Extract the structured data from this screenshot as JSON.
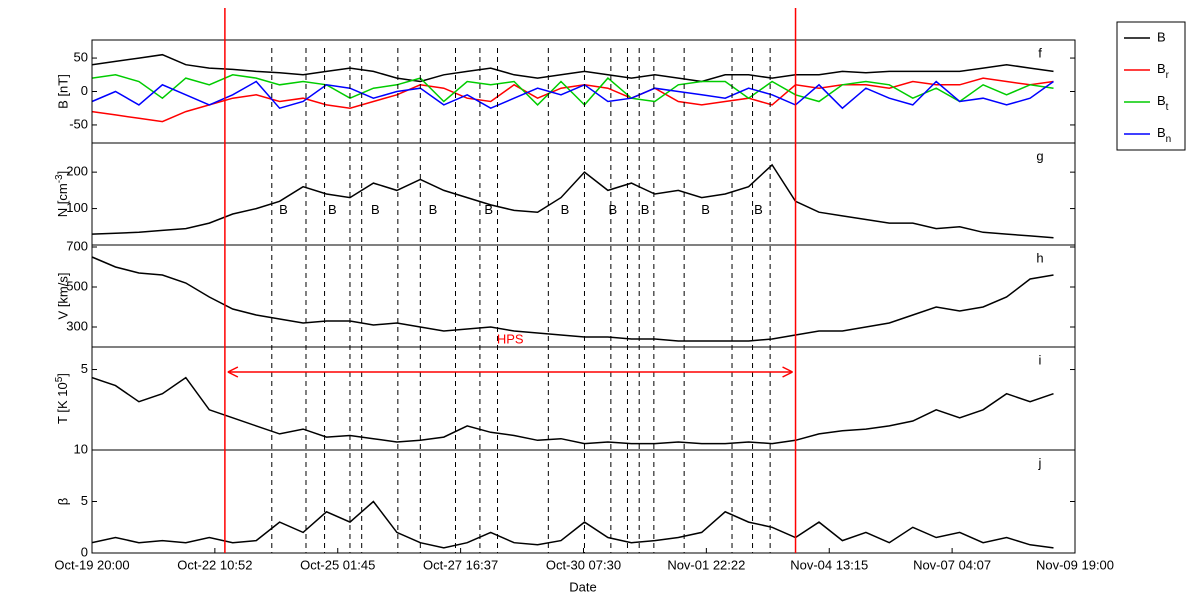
{
  "chart_data": {
    "type": "line",
    "xlabel": "Date",
    "x": [
      "Oct-19 20:00",
      "Oct-20 08:00",
      "Oct-20 20:00",
      "Oct-21 08:00",
      "Oct-21 20:00",
      "Oct-22 08:00",
      "Oct-22 20:00",
      "Oct-23 08:00",
      "Oct-23 20:00",
      "Oct-24 08:00",
      "Oct-24 20:00",
      "Oct-25 08:00",
      "Oct-25 20:00",
      "Oct-26 08:00",
      "Oct-26 20:00",
      "Oct-27 08:00",
      "Oct-27 20:00",
      "Oct-28 08:00",
      "Oct-28 20:00",
      "Oct-29 08:00",
      "Oct-29 20:00",
      "Oct-30 08:00",
      "Oct-30 20:00",
      "Oct-31 08:00",
      "Oct-31 20:00",
      "Nov-01 08:00",
      "Nov-01 20:00",
      "Nov-02 08:00",
      "Nov-02 20:00",
      "Nov-03 08:00",
      "Nov-03 20:00",
      "Nov-04 08:00",
      "Nov-04 20:00",
      "Nov-05 08:00",
      "Nov-05 20:00",
      "Nov-06 08:00",
      "Nov-06 20:00",
      "Nov-07 08:00",
      "Nov-07 20:00",
      "Nov-08 08:00",
      "Nov-08 20:00",
      "Nov-09 08:00"
    ],
    "xlim": [
      "Oct-19 20:00",
      "Nov-09 19:00"
    ],
    "xticks": [
      "Oct-19 20:00",
      "Oct-22 10:52",
      "Oct-25 01:45",
      "Oct-27 16:37",
      "Oct-30 07:30",
      "Nov-01 22:22",
      "Nov-04 13:15",
      "Nov-07 04:07",
      "Nov-09 19:00"
    ],
    "boundaries": [
      "Oct-22 16:00",
      "Nov-03 20:00"
    ],
    "boundary_color": "#ff0000",
    "span_label": "HPS",
    "events": [
      "Oct-23 16:00",
      "Oct-24 09:30",
      "Oct-24 19:00",
      "Oct-25 08:00",
      "Oct-25 14:00",
      "Oct-26 08:30",
      "Oct-26 20:00",
      "Oct-27 14:00",
      "Oct-28 02:30",
      "Oct-28 11:30",
      "Oct-29 13:30",
      "Oct-30 08:00",
      "Oct-30 21:30",
      "Oct-31 06:00",
      "Oct-31 12:00",
      "Oct-31 19:30",
      "Nov-01 11:00",
      "Nov-02 11:30",
      "Nov-02 22:00",
      "Nov-03 07:00"
    ],
    "legend": "outside right",
    "panels": [
      {
        "label": "f",
        "ylabel": "B [nT]",
        "ylim": [
          -77,
          77
        ],
        "yticks": [
          50,
          0,
          -50
        ],
        "series": [
          {
            "name": "B",
            "color": "#000000",
            "values": [
              40,
              45,
              50,
              55,
              40,
              35,
              33,
              30,
              28,
              25,
              30,
              35,
              30,
              20,
              15,
              25,
              30,
              35,
              25,
              20,
              25,
              30,
              25,
              20,
              25,
              20,
              15,
              25,
              25,
              20,
              25,
              25,
              30,
              28,
              30,
              30,
              30,
              30,
              35,
              40,
              35,
              30
            ]
          },
          {
            "name": "B_r",
            "color": "#ff0000",
            "values": [
              -30,
              -35,
              -40,
              -45,
              -30,
              -20,
              -10,
              -5,
              -15,
              -10,
              -20,
              -25,
              -15,
              -5,
              10,
              5,
              -10,
              -15,
              10,
              -10,
              5,
              10,
              5,
              -10,
              5,
              -15,
              -20,
              -15,
              -10,
              -20,
              10,
              5,
              10,
              10,
              5,
              15,
              10,
              10,
              20,
              15,
              10,
              15
            ]
          },
          {
            "name": "B_t",
            "color": "#00cc00",
            "values": [
              20,
              25,
              15,
              -10,
              20,
              10,
              25,
              20,
              10,
              15,
              10,
              -10,
              5,
              10,
              20,
              -15,
              15,
              10,
              15,
              -20,
              15,
              -20,
              20,
              -10,
              -15,
              10,
              15,
              15,
              -10,
              15,
              -5,
              -15,
              10,
              15,
              10,
              -10,
              5,
              -15,
              10,
              -5,
              10,
              5
            ]
          },
          {
            "name": "B_n",
            "color": "#0000ff",
            "values": [
              -15,
              0,
              -20,
              10,
              -5,
              -20,
              -5,
              15,
              -25,
              -15,
              10,
              5,
              -10,
              0,
              5,
              -20,
              -5,
              -25,
              -10,
              5,
              -5,
              10,
              -15,
              -10,
              5,
              0,
              -5,
              -10,
              5,
              -5,
              -20,
              10,
              -25,
              5,
              -10,
              -20,
              15,
              -15,
              -10,
              -20,
              -10,
              15
            ]
          }
        ]
      },
      {
        "label": "g",
        "ylabel": "N [cm^-3]",
        "ylim": [
          0,
          280
        ],
        "yticks": [
          100,
          200
        ],
        "series": [
          {
            "color": "#000000",
            "values": [
              30,
              32,
              35,
              40,
              45,
              60,
              85,
              100,
              120,
              160,
              140,
              130,
              170,
              150,
              180,
              150,
              130,
              110,
              95,
              90,
              130,
              200,
              150,
              170,
              140,
              150,
              130,
              140,
              160,
              220,
              120,
              90,
              80,
              70,
              60,
              60,
              45,
              50,
              35,
              30,
              25,
              20
            ]
          }
        ],
        "annotations": [
          {
            "text": "B",
            "x": "Oct-23 22:00",
            "y": 95
          },
          {
            "text": "B",
            "x": "Oct-24 23:00",
            "y": 95
          },
          {
            "text": "B",
            "x": "Oct-25 21:00",
            "y": 95
          },
          {
            "text": "B",
            "x": "Oct-27 02:30",
            "y": 95
          },
          {
            "text": "B",
            "x": "Oct-28 07:00",
            "y": 95
          },
          {
            "text": "B",
            "x": "Oct-29 22:00",
            "y": 95
          },
          {
            "text": "B",
            "x": "Oct-30 22:30",
            "y": 95
          },
          {
            "text": "B",
            "x": "Oct-31 15:00",
            "y": 95
          },
          {
            "text": "B",
            "x": "Nov-01 22:00",
            "y": 95
          },
          {
            "text": "B",
            "x": "Nov-03 01:00",
            "y": 95
          }
        ]
      },
      {
        "label": "h",
        "ylabel": "V [km/s]",
        "ylim": [
          200,
          710
        ],
        "yticks": [
          700,
          500,
          300
        ],
        "series": [
          {
            "color": "#000000",
            "values": [
              650,
              600,
              570,
              560,
              520,
              450,
              390,
              360,
              340,
              320,
              330,
              330,
              310,
              320,
              300,
              280,
              290,
              300,
              280,
              270,
              260,
              250,
              250,
              240,
              240,
              230,
              230,
              230,
              230,
              240,
              260,
              280,
              280,
              300,
              320,
              360,
              400,
              380,
              400,
              450,
              540,
              560
            ]
          }
        ]
      },
      {
        "label": "i",
        "ylabel": "T [K 10^5]",
        "ylim": [
          0,
          6.4
        ],
        "yticks": [
          5
        ],
        "series": [
          {
            "color": "#000000",
            "values": [
              4.5,
              4,
              3,
              3.5,
              4.5,
              2.5,
              2,
              1.5,
              1,
              1.3,
              0.8,
              0.9,
              0.7,
              0.5,
              0.6,
              0.8,
              1.5,
              1.1,
              0.9,
              0.6,
              0.7,
              0.4,
              0.5,
              0.4,
              0.4,
              0.5,
              0.4,
              0.4,
              0.5,
              0.4,
              0.6,
              1,
              1.2,
              1.3,
              1.5,
              1.8,
              2.5,
              2,
              2.5,
              3.5,
              3,
              3.5
            ]
          }
        ]
      },
      {
        "label": "j",
        "ylabel": "β",
        "ylim": [
          0,
          10
        ],
        "yticks": [
          10,
          5,
          0
        ],
        "series": [
          {
            "color": "#000000",
            "values": [
              1,
              1.5,
              1,
              1.2,
              1,
              1.5,
              1,
              1.2,
              3,
              2,
              4,
              3,
              5,
              2,
              1,
              0.5,
              1,
              2,
              1,
              0.8,
              1.2,
              3,
              1.5,
              1,
              1.2,
              1.5,
              2,
              4,
              3,
              2.5,
              1.5,
              3,
              1.2,
              2,
              1,
              2.5,
              1.5,
              2,
              1,
              1.5,
              0.8,
              0.5
            ]
          }
        ]
      }
    ]
  }
}
